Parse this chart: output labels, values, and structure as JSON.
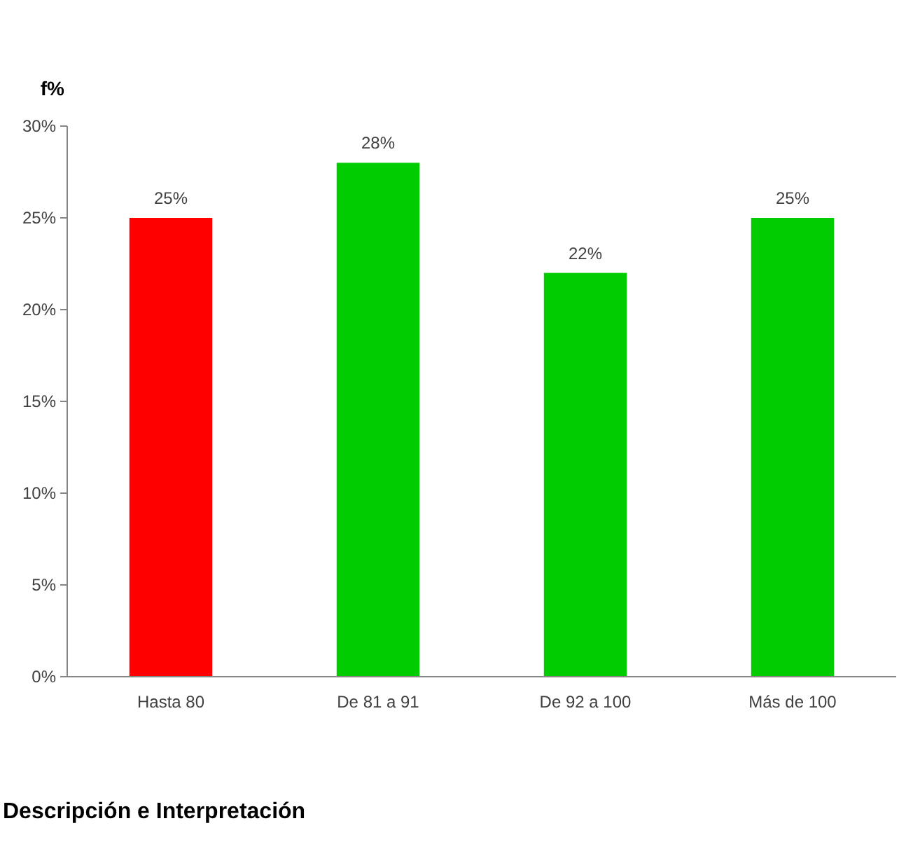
{
  "chart_data": {
    "type": "bar",
    "ylabel": "f%",
    "categories": [
      "Hasta 80",
      "De 81 a 91",
      "De 92 a 100",
      "Más de 100"
    ],
    "values": [
      25,
      28,
      22,
      25
    ],
    "colors": [
      "#ff0000",
      "#00cc00",
      "#00cc00",
      "#00cc00"
    ],
    "value_labels": [
      "25%",
      "28%",
      "22%",
      "25%"
    ],
    "ylim": [
      0,
      30
    ],
    "yticks": [
      {
        "value": 0,
        "label": "0%"
      },
      {
        "value": 5,
        "label": "5%"
      },
      {
        "value": 10,
        "label": "10%"
      },
      {
        "value": 15,
        "label": "15%"
      },
      {
        "value": 20,
        "label": "20%"
      },
      {
        "value": 25,
        "label": "25%"
      },
      {
        "value": 30,
        "label": "30%"
      }
    ],
    "grid": false,
    "annotations": [
      "Descripción e Interpretación"
    ]
  }
}
